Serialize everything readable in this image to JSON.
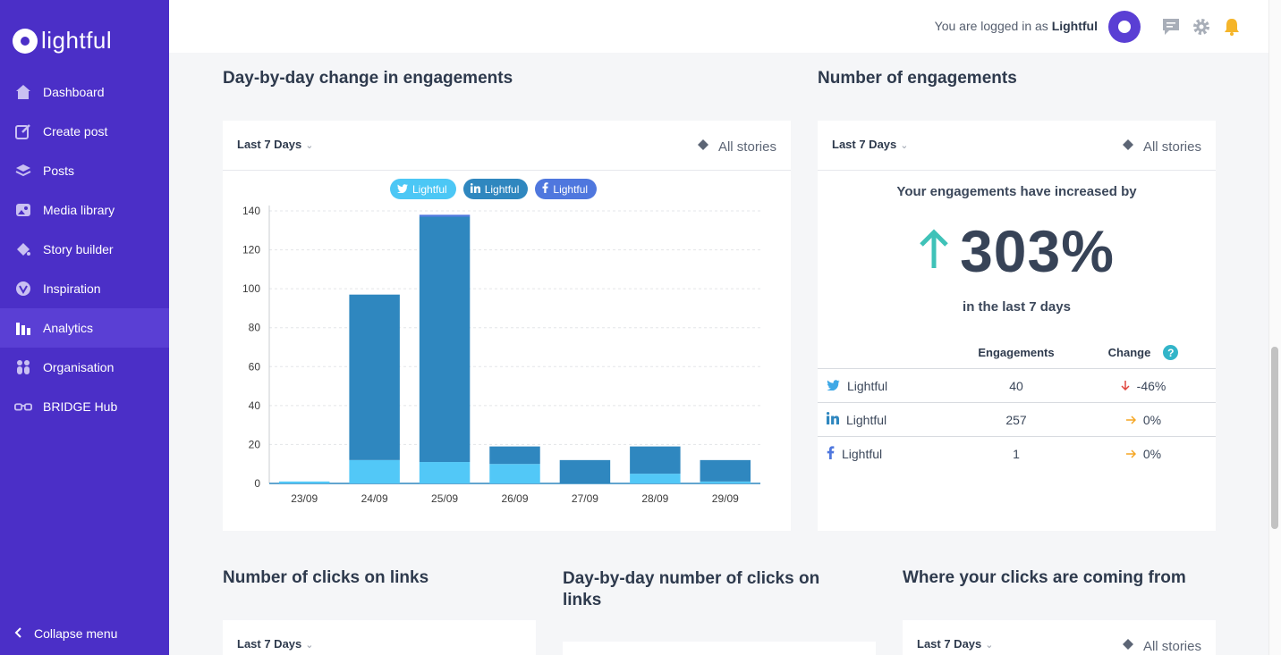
{
  "app": {
    "logo_text": "lightful"
  },
  "sidebar": {
    "items": [
      {
        "label": "Dashboard",
        "icon": "home-icon"
      },
      {
        "label": "Create post",
        "icon": "edit-icon"
      },
      {
        "label": "Posts",
        "icon": "layers-icon"
      },
      {
        "label": "Media library",
        "icon": "image-icon"
      },
      {
        "label": "Story builder",
        "icon": "paint-icon"
      },
      {
        "label": "Inspiration",
        "icon": "inspiration-icon"
      },
      {
        "label": "Analytics",
        "icon": "bar-chart-icon"
      },
      {
        "label": "Organisation",
        "icon": "people-icon"
      },
      {
        "label": "BRIDGE Hub",
        "icon": "glasses-icon"
      }
    ],
    "active": "Analytics",
    "collapse_label": "Collapse menu"
  },
  "header": {
    "login_prefix": "You are logged in as",
    "user": "Lightful"
  },
  "sections": {
    "day_change_title": "Day-by-day change in engagements",
    "num_eng_title": "Number of engagements",
    "clicks_title": "Number of clicks on links",
    "day_clicks_title": "Day-by-day number of clicks on links",
    "where_clicks_title": "Where your clicks are coming from"
  },
  "filters": {
    "range": "Last 7 Days",
    "stories": "All stories"
  },
  "legend": [
    {
      "label": "Lightful",
      "network": "twitter",
      "color": "#4cc7f5"
    },
    {
      "label": "Lightful",
      "network": "linkedin",
      "color": "#2f87bf"
    },
    {
      "label": "Lightful",
      "network": "facebook",
      "color": "#4f77de"
    }
  ],
  "chart_data": {
    "type": "bar",
    "stacked": true,
    "categories": [
      "23/09",
      "24/09",
      "25/09",
      "26/09",
      "27/09",
      "28/09",
      "29/09"
    ],
    "series": [
      {
        "name": "Twitter - Lightful",
        "color": "#52c8f7",
        "values": [
          1,
          12,
          11,
          10,
          0,
          5,
          1
        ]
      },
      {
        "name": "LinkedIn - Lightful",
        "color": "#2f87bf",
        "values": [
          0,
          85,
          126,
          9,
          12,
          14,
          11
        ]
      },
      {
        "name": "Facebook - Lightful",
        "color": "#4f77de",
        "values": [
          0,
          0,
          1,
          0,
          0,
          0,
          0
        ]
      }
    ],
    "yticks": [
      0,
      20,
      40,
      60,
      80,
      100,
      120,
      140
    ],
    "ylim": [
      0,
      140
    ]
  },
  "engagement_summary": {
    "line1": "Your engagements have increased by",
    "percent": "303%",
    "line2": "in the last 7 days",
    "col_engagements": "Engagements",
    "col_change": "Change",
    "help": "?",
    "rows": [
      {
        "network": "twitter",
        "name": "Lightful",
        "engagements": "40",
        "change": "-46%",
        "trend": "down"
      },
      {
        "network": "linkedin",
        "name": "Lightful",
        "engagements": "257",
        "change": "0%",
        "trend": "flat"
      },
      {
        "network": "facebook",
        "name": "Lightful",
        "engagements": "1",
        "change": "0%",
        "trend": "flat"
      }
    ]
  }
}
